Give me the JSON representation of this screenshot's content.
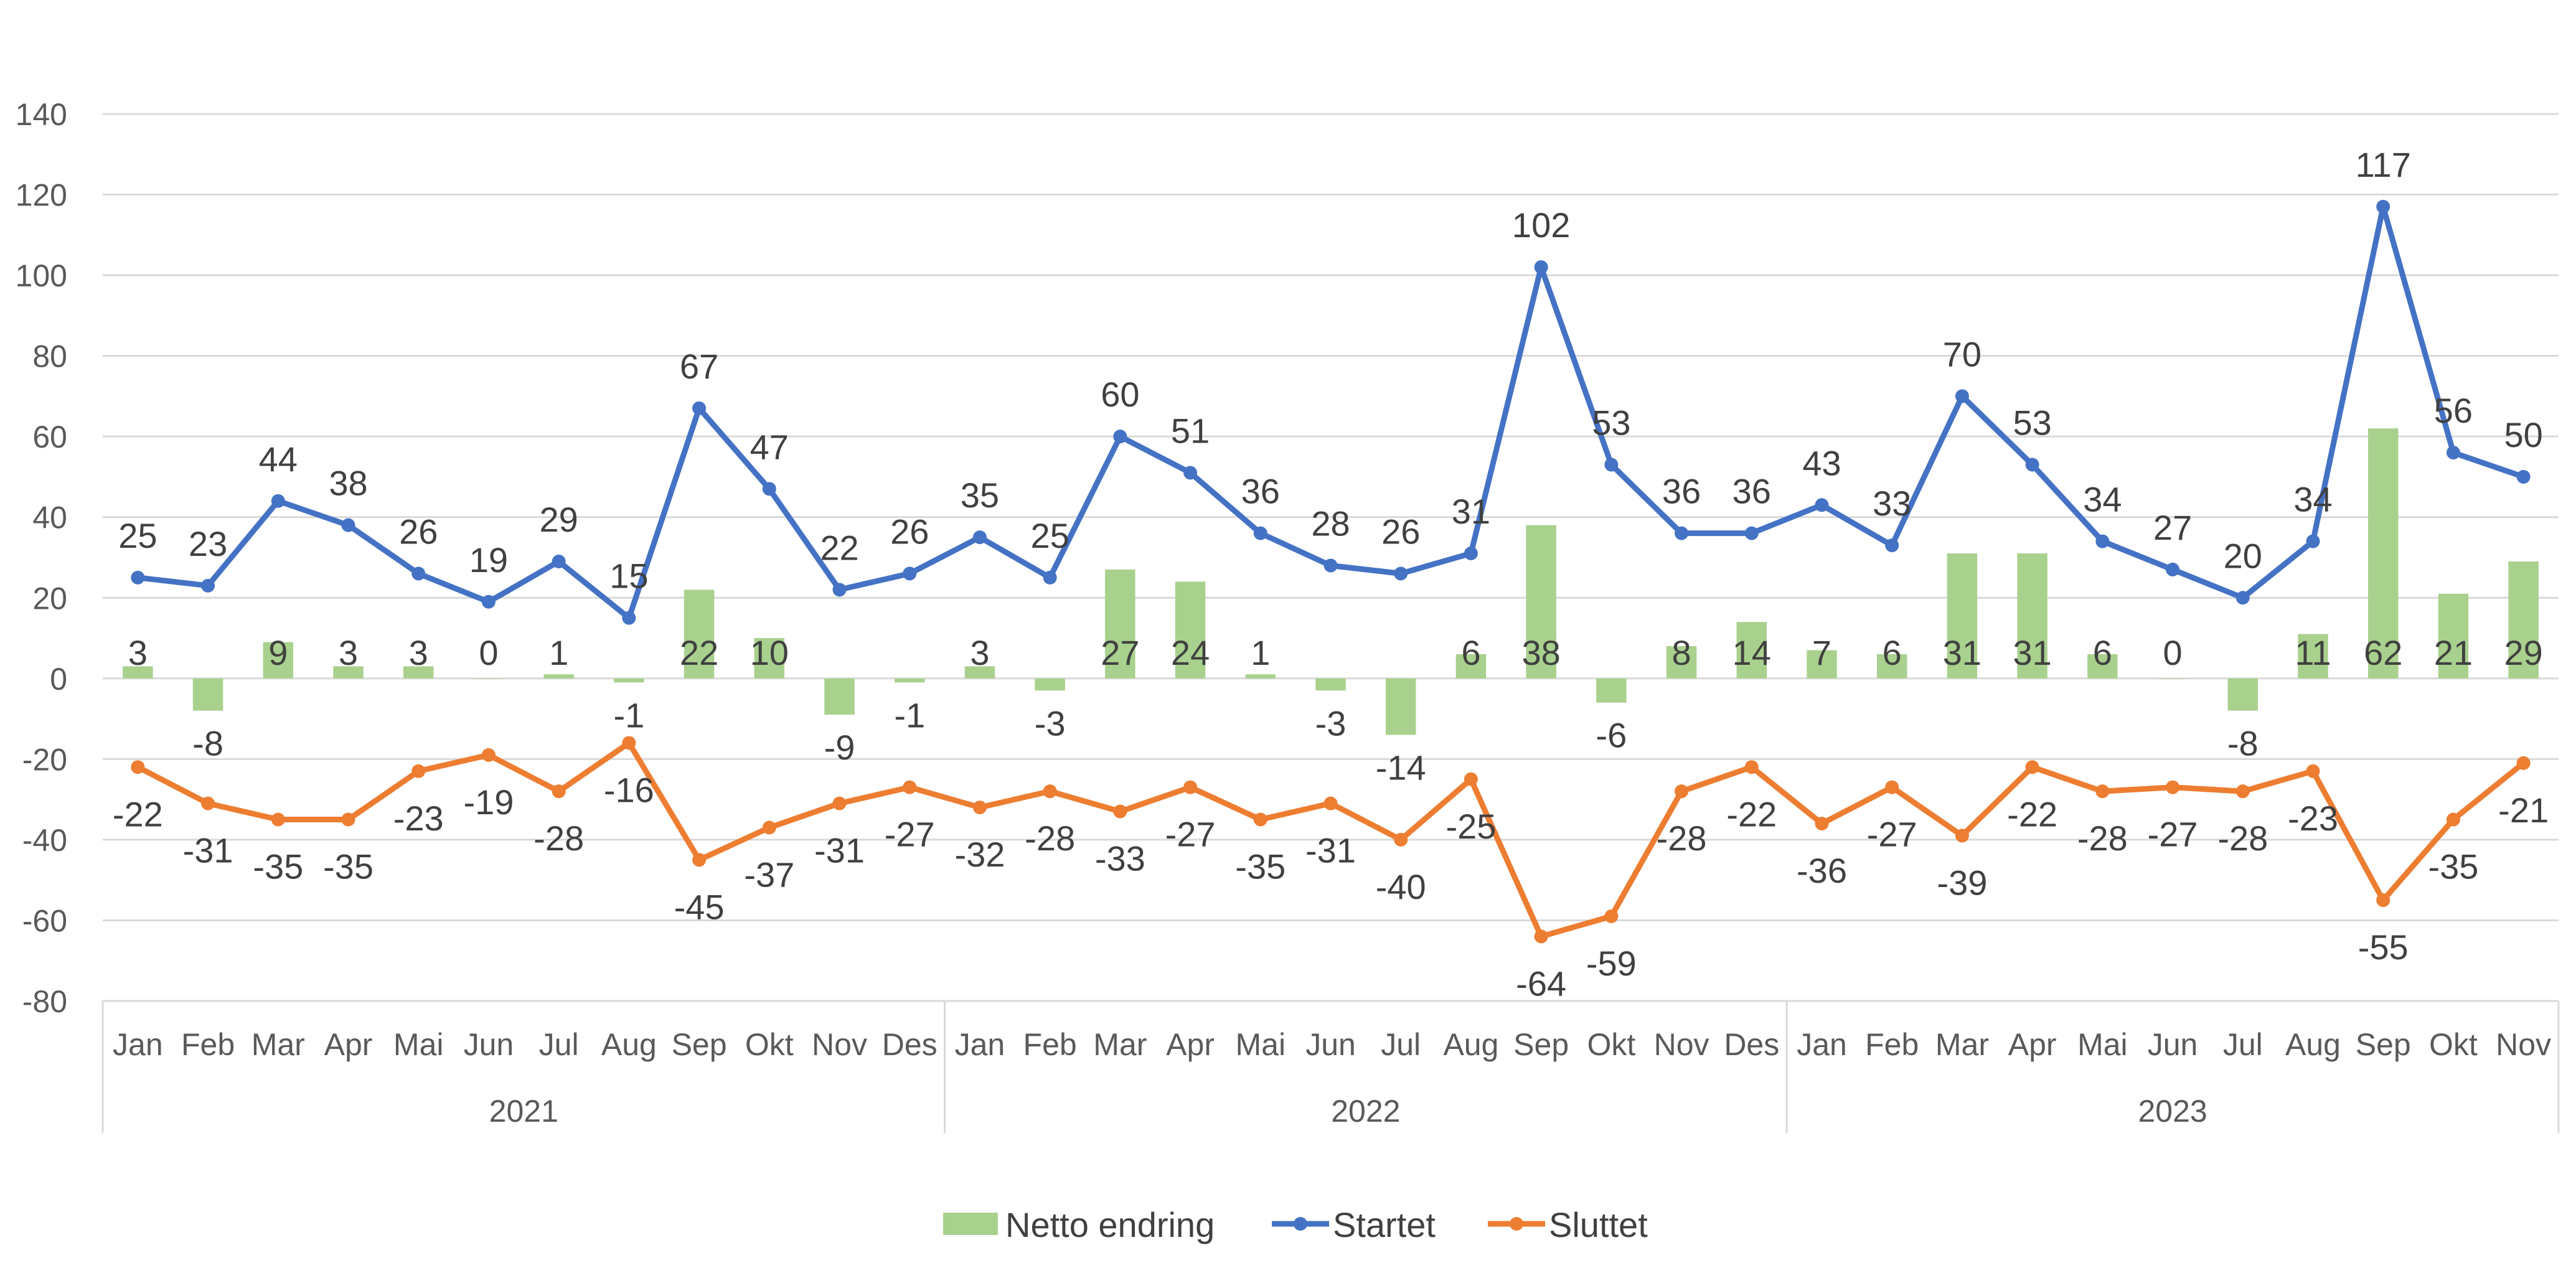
{
  "chart_data": {
    "type": "bar+line",
    "ylim": [
      -80,
      140
    ],
    "y_ticks": [
      140,
      120,
      100,
      80,
      60,
      40,
      20,
      0,
      -20,
      -40,
      -60,
      -80
    ],
    "grid": true,
    "legend_position": "bottom",
    "years": [
      {
        "label": "2021",
        "months": 12
      },
      {
        "label": "2022",
        "months": 12
      },
      {
        "label": "2023",
        "months": 11
      }
    ],
    "categories": [
      "Jan",
      "Feb",
      "Mar",
      "Apr",
      "Mai",
      "Jun",
      "Jul",
      "Aug",
      "Sep",
      "Okt",
      "Nov",
      "Des",
      "Jan",
      "Feb",
      "Mar",
      "Apr",
      "Mai",
      "Jun",
      "Jul",
      "Aug",
      "Sep",
      "Okt",
      "Nov",
      "Des",
      "Jan",
      "Feb",
      "Mar",
      "Apr",
      "Mai",
      "Jun",
      "Jul",
      "Aug",
      "Sep",
      "Okt",
      "Nov"
    ],
    "series": [
      {
        "name": "Netto endring",
        "type": "bar",
        "color": "#a9d18e",
        "values": [
          3,
          -8,
          9,
          3,
          3,
          0,
          1,
          -1,
          22,
          10,
          -9,
          -1,
          3,
          -3,
          27,
          24,
          1,
          -3,
          -14,
          6,
          38,
          -6,
          8,
          14,
          7,
          6,
          31,
          31,
          6,
          0,
          -8,
          11,
          62,
          21,
          29
        ]
      },
      {
        "name": "Startet",
        "type": "line",
        "color": "#4472c4",
        "values": [
          25,
          23,
          44,
          38,
          26,
          19,
          29,
          15,
          67,
          47,
          22,
          26,
          35,
          25,
          60,
          51,
          36,
          28,
          26,
          31,
          102,
          53,
          36,
          36,
          43,
          33,
          70,
          53,
          34,
          27,
          20,
          34,
          117,
          56,
          50
        ]
      },
      {
        "name": "Sluttet",
        "type": "line",
        "color": "#ed7d31",
        "values": [
          -22,
          -31,
          -35,
          -35,
          -23,
          -19,
          -28,
          -16,
          -45,
          -37,
          -31,
          -27,
          -32,
          -28,
          -33,
          -27,
          -35,
          -31,
          -40,
          -25,
          -64,
          -59,
          -28,
          -22,
          -36,
          -27,
          -39,
          -22,
          -28,
          -27,
          -28,
          -23,
          -55,
          -35,
          -21
        ]
      }
    ]
  }
}
